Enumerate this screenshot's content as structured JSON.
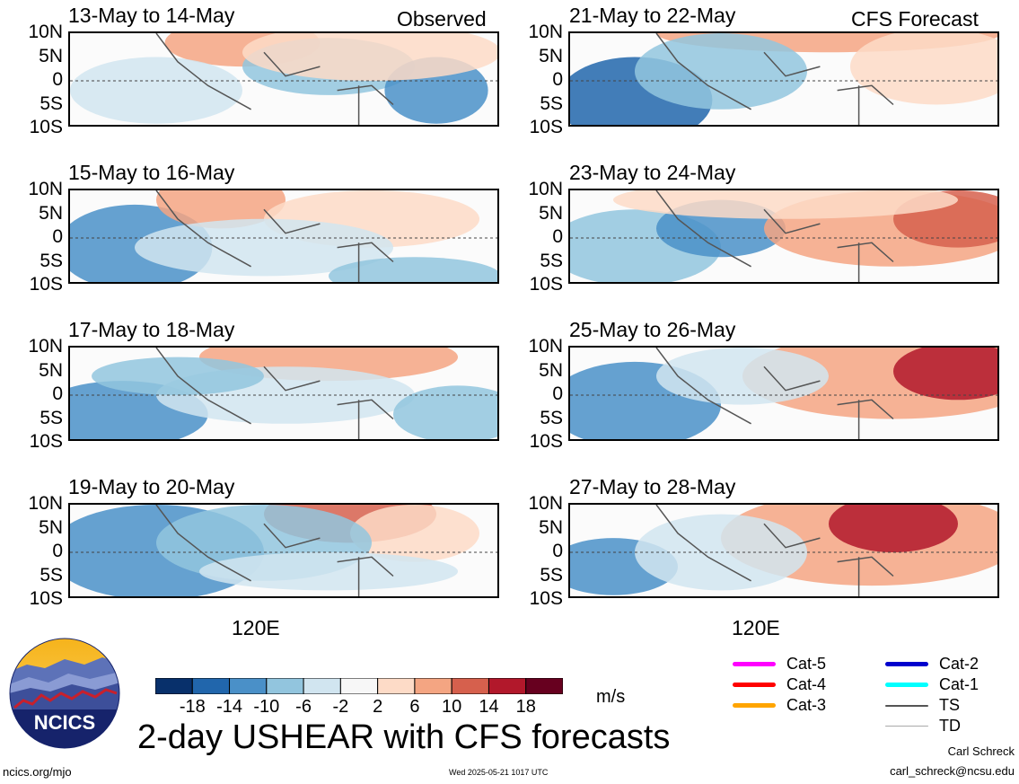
{
  "chart_data": {
    "type": "heatmap",
    "title": "2-day USHEAR with CFS forecasts",
    "variable": "USHEAR",
    "units": "m/s",
    "y_tick_labels": [
      "10N",
      "5N",
      "0",
      "5S",
      "10S"
    ],
    "x_tick_labels": [
      "120E"
    ],
    "colorbar": {
      "tick_labels": [
        "-18",
        "-14",
        "-10",
        "-6",
        "-2",
        "2",
        "6",
        "10",
        "14",
        "18"
      ],
      "colors": [
        "#08306b",
        "#2166ac",
        "#4a90c8",
        "#92c5de",
        "#d1e5f0",
        "#f7f7f7",
        "#fddbc7",
        "#f4a582",
        "#d6604d",
        "#b2182b",
        "#67001f"
      ]
    },
    "panels_observed": [
      {
        "period": "13-May to 14-May",
        "corner_label": "Observed"
      },
      {
        "period": "15-May to 16-May"
      },
      {
        "period": "17-May to 18-May"
      },
      {
        "period": "19-May to 20-May"
      }
    ],
    "panels_forecast": [
      {
        "period": "21-May to 22-May",
        "corner_label": "CFS Forecast"
      },
      {
        "period": "23-May to 24-May"
      },
      {
        "period": "25-May to 26-May"
      },
      {
        "period": "27-May to 28-May"
      }
    ]
  },
  "legend": {
    "items": [
      {
        "label": "Cat-5",
        "color": "#ff00ff"
      },
      {
        "label": "Cat-4",
        "color": "#ff0000"
      },
      {
        "label": "Cat-3",
        "color": "#ffa500"
      },
      {
        "label": "Cat-2",
        "color": "#0000cd"
      },
      {
        "label": "Cat-1",
        "color": "#00ffff"
      },
      {
        "label": "TS",
        "color": "#555555"
      },
      {
        "label": "TD",
        "color": "#aaaaaa"
      }
    ]
  },
  "logo": {
    "text": "NCICS"
  },
  "footer": {
    "left_url": "ncics.org/mjo",
    "timestamp": "Wed 2025-05-21 1017 UTC",
    "author": "Carl Schreck",
    "email": "carl_schreck@ncsu.edu"
  }
}
